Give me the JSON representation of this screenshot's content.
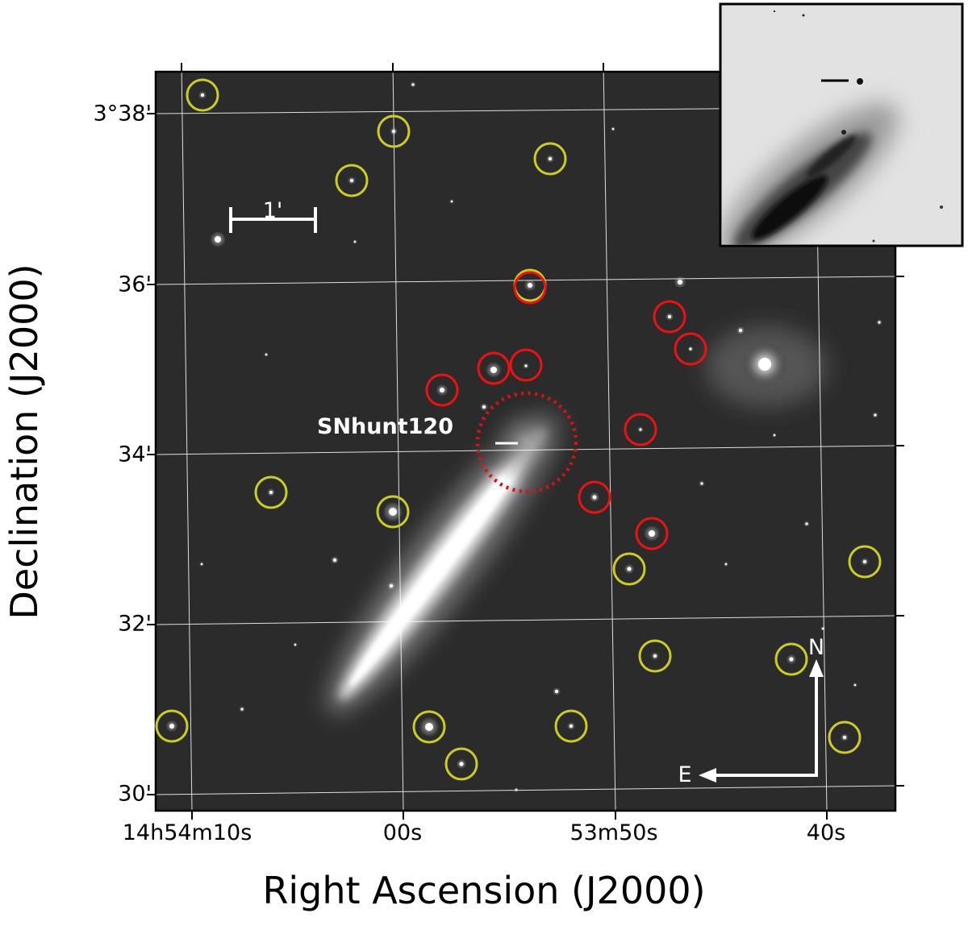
{
  "figure": {
    "xlabel": "Right Ascension (J2000)",
    "ylabel": "Declination (J2000)",
    "x_ticks": [
      "14h54m10s",
      "00s",
      "53m50s",
      "40s"
    ],
    "y_ticks": [
      "3°38'",
      "36'",
      "34'",
      "32'",
      "30'"
    ],
    "target_label": "SNhunt120",
    "scale_bar_label": "1'",
    "compass": {
      "north": "N",
      "east": "E"
    },
    "colors": {
      "comparison_star_circle": "#cccc22",
      "highlight_circle": "#ee1111",
      "target_region": "#dd1111",
      "grid": "#ffffff"
    },
    "icons": {
      "image": "sky-field-image",
      "inset": "zoom-inset-negative-image",
      "compass": "north-east-arrows",
      "scale": "scale-bar"
    }
  }
}
